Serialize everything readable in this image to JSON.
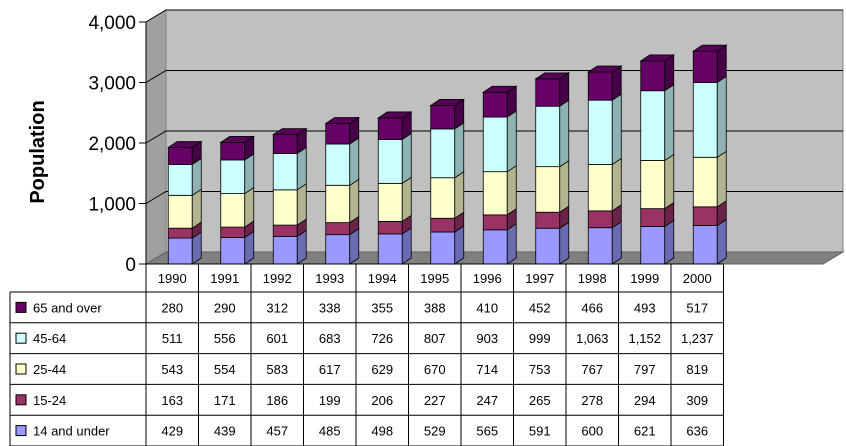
{
  "chart_data": {
    "type": "bar",
    "stacked": true,
    "three_d": true,
    "ylabel": "Population",
    "ylim": [
      0,
      4000
    ],
    "yticks": [
      "0",
      "1,000",
      "2,000",
      "3,000",
      "4,000"
    ],
    "ytick_values": [
      0,
      1000,
      2000,
      3000,
      4000
    ],
    "grid": true,
    "legend_placement": "data-table-left",
    "categories": [
      "1990",
      "1991",
      "1992",
      "1993",
      "1994",
      "1995",
      "1996",
      "1997",
      "1998",
      "1999",
      "2000"
    ],
    "series": [
      {
        "name": "14 and under",
        "color": "#9999ff",
        "values": [
          429,
          439,
          457,
          485,
          498,
          529,
          565,
          591,
          600,
          621,
          636
        ],
        "labels": [
          "429",
          "439",
          "457",
          "485",
          "498",
          "529",
          "565",
          "591",
          "600",
          "621",
          "636"
        ]
      },
      {
        "name": "15-24",
        "color": "#993366",
        "values": [
          163,
          171,
          186,
          199,
          206,
          227,
          247,
          265,
          278,
          294,
          309
        ],
        "labels": [
          "163",
          "171",
          "186",
          "199",
          "206",
          "227",
          "247",
          "265",
          "278",
          "294",
          "309"
        ]
      },
      {
        "name": "25-44",
        "color": "#ffffcc",
        "values": [
          543,
          554,
          583,
          617,
          629,
          670,
          714,
          753,
          767,
          797,
          819
        ],
        "labels": [
          "543",
          "554",
          "583",
          "617",
          "629",
          "670",
          "714",
          "753",
          "767",
          "797",
          "819"
        ]
      },
      {
        "name": "45-64",
        "color": "#ccffff",
        "values": [
          511,
          556,
          601,
          683,
          726,
          807,
          903,
          999,
          1063,
          1152,
          1237
        ],
        "labels": [
          "511",
          "556",
          "601",
          "683",
          "726",
          "807",
          "903",
          "999",
          "1,063",
          "1,152",
          "1,237"
        ]
      },
      {
        "name": "65 and over",
        "color": "#660066",
        "values": [
          280,
          290,
          312,
          338,
          355,
          388,
          410,
          452,
          466,
          493,
          517
        ],
        "labels": [
          "280",
          "290",
          "312",
          "338",
          "355",
          "388",
          "410",
          "452",
          "466",
          "493",
          "517"
        ]
      }
    ]
  },
  "colors": {
    "wall": "#c0c0c0",
    "floor": "#808080",
    "gridline": "#000000"
  }
}
